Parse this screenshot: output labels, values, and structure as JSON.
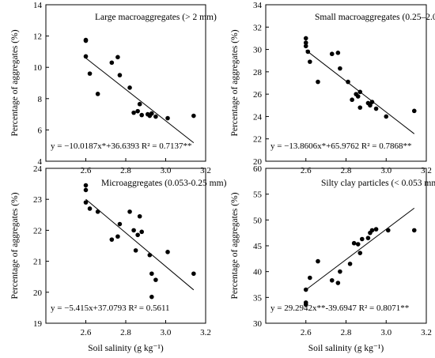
{
  "chart_data": [
    {
      "type": "scatter",
      "title": "Large macroaggregates (> 2 mm)",
      "ylabel": "Percentage of aggregates (%)",
      "xlabel": "",
      "xlim": [
        2.4,
        3.2
      ],
      "ylim": [
        4,
        14
      ],
      "xticks": [
        "2.6",
        "2.8",
        "3.0",
        "3.2"
      ],
      "yticks": [
        "4",
        "6",
        "8",
        "10",
        "12",
        "14"
      ],
      "equation": "y = −10.0187x*+36.6393  R² = 0.7137**",
      "fit": {
        "slope": -10.0187,
        "intercept": 36.6393,
        "x_range": [
          2.6,
          3.14
        ]
      },
      "points": [
        {
          "x": 2.6,
          "y": 11.7
        },
        {
          "x": 2.6,
          "y": 11.75
        },
        {
          "x": 2.6,
          "y": 10.7
        },
        {
          "x": 2.62,
          "y": 9.6
        },
        {
          "x": 2.66,
          "y": 8.3
        },
        {
          "x": 2.73,
          "y": 10.3
        },
        {
          "x": 2.76,
          "y": 10.65
        },
        {
          "x": 2.77,
          "y": 9.5
        },
        {
          "x": 2.82,
          "y": 8.7
        },
        {
          "x": 2.84,
          "y": 7.1
        },
        {
          "x": 2.86,
          "y": 7.2
        },
        {
          "x": 2.87,
          "y": 7.65
        },
        {
          "x": 2.88,
          "y": 6.95
        },
        {
          "x": 2.91,
          "y": 7.0
        },
        {
          "x": 2.92,
          "y": 6.9
        },
        {
          "x": 2.93,
          "y": 7.05
        },
        {
          "x": 2.95,
          "y": 6.85
        },
        {
          "x": 3.01,
          "y": 6.75
        },
        {
          "x": 3.14,
          "y": 6.9
        }
      ]
    },
    {
      "type": "scatter",
      "title": "Small macroaggregates (0.25–2.0 mm)",
      "ylabel": "Percentage of aggregates (%)",
      "xlabel": "",
      "xlim": [
        2.4,
        3.2
      ],
      "ylim": [
        20,
        34
      ],
      "xticks": [
        "2.6",
        "2.8",
        "3.0",
        "3.2"
      ],
      "yticks": [
        "20",
        "22",
        "24",
        "26",
        "28",
        "30",
        "32",
        "34"
      ],
      "equation": "y = −13.8606x*+65.9762  R² = 0.7868**",
      "fit": {
        "slope": -13.8606,
        "intercept": 65.9762,
        "x_range": [
          2.6,
          3.14
        ]
      },
      "points": [
        {
          "x": 2.6,
          "y": 31.0
        },
        {
          "x": 2.6,
          "y": 30.6
        },
        {
          "x": 2.6,
          "y": 30.3
        },
        {
          "x": 2.61,
          "y": 29.8
        },
        {
          "x": 2.62,
          "y": 28.9
        },
        {
          "x": 2.66,
          "y": 27.1
        },
        {
          "x": 2.73,
          "y": 29.6
        },
        {
          "x": 2.76,
          "y": 29.7
        },
        {
          "x": 2.77,
          "y": 28.3
        },
        {
          "x": 2.81,
          "y": 27.1
        },
        {
          "x": 2.83,
          "y": 25.5
        },
        {
          "x": 2.85,
          "y": 26.0
        },
        {
          "x": 2.86,
          "y": 25.8
        },
        {
          "x": 2.87,
          "y": 26.2
        },
        {
          "x": 2.87,
          "y": 24.8
        },
        {
          "x": 2.91,
          "y": 25.2
        },
        {
          "x": 2.92,
          "y": 25.0
        },
        {
          "x": 2.93,
          "y": 25.3
        },
        {
          "x": 2.95,
          "y": 24.7
        },
        {
          "x": 3.0,
          "y": 24.0
        },
        {
          "x": 3.14,
          "y": 24.5
        }
      ]
    },
    {
      "type": "scatter",
      "title": "Microaggregates (0.053-0.25 mm)",
      "ylabel": "Percentage of aggregates (%)",
      "xlabel": "Soil salinity (g kg⁻¹)",
      "xlim": [
        2.4,
        3.2
      ],
      "ylim": [
        19,
        24
      ],
      "xticks": [
        "2.6",
        "2.8",
        "3.0",
        "3.2"
      ],
      "yticks": [
        "19",
        "20",
        "21",
        "22",
        "23",
        "24"
      ],
      "equation": "y = −5.415x+37.0793  R² = 0.5611",
      "fit": {
        "slope": -5.415,
        "intercept": 37.0793,
        "x_range": [
          2.6,
          3.14
        ]
      },
      "points": [
        {
          "x": 2.6,
          "y": 23.45
        },
        {
          "x": 2.6,
          "y": 23.3
        },
        {
          "x": 2.6,
          "y": 22.9
        },
        {
          "x": 2.62,
          "y": 22.7
        },
        {
          "x": 2.66,
          "y": 22.6
        },
        {
          "x": 2.73,
          "y": 21.7
        },
        {
          "x": 2.76,
          "y": 21.8
        },
        {
          "x": 2.77,
          "y": 22.2
        },
        {
          "x": 2.82,
          "y": 22.6
        },
        {
          "x": 2.84,
          "y": 22.0
        },
        {
          "x": 2.85,
          "y": 21.35
        },
        {
          "x": 2.86,
          "y": 21.85
        },
        {
          "x": 2.87,
          "y": 22.45
        },
        {
          "x": 2.88,
          "y": 21.95
        },
        {
          "x": 2.92,
          "y": 21.2
        },
        {
          "x": 2.93,
          "y": 20.6
        },
        {
          "x": 2.93,
          "y": 19.85
        },
        {
          "x": 2.95,
          "y": 20.4
        },
        {
          "x": 3.01,
          "y": 21.3
        },
        {
          "x": 3.14,
          "y": 20.6
        }
      ]
    },
    {
      "type": "scatter",
      "title": "Silty clay particles (< 0.053 mm)",
      "ylabel": "Percentage of aggregates (%)",
      "xlabel": "Soil salinity (g kg⁻¹)",
      "xlim": [
        2.4,
        3.2
      ],
      "ylim": [
        30,
        60
      ],
      "xticks": [
        "2.6",
        "2.8",
        "3.0",
        "3.2"
      ],
      "yticks": [
        "30",
        "35",
        "40",
        "45",
        "50",
        "55",
        "60"
      ],
      "equation": "y = 29.2942x**-39.6947  R² = 0.8071**",
      "fit": {
        "slope": 29.2942,
        "intercept": -39.6947,
        "x_range": [
          2.6,
          3.14
        ]
      },
      "points": [
        {
          "x": 2.6,
          "y": 34.0
        },
        {
          "x": 2.6,
          "y": 33.6
        },
        {
          "x": 2.6,
          "y": 36.5
        },
        {
          "x": 2.62,
          "y": 38.8
        },
        {
          "x": 2.66,
          "y": 42.0
        },
        {
          "x": 2.73,
          "y": 38.3
        },
        {
          "x": 2.76,
          "y": 37.8
        },
        {
          "x": 2.77,
          "y": 40.0
        },
        {
          "x": 2.82,
          "y": 41.5
        },
        {
          "x": 2.84,
          "y": 45.5
        },
        {
          "x": 2.86,
          "y": 45.3
        },
        {
          "x": 2.87,
          "y": 43.6
        },
        {
          "x": 2.88,
          "y": 46.3
        },
        {
          "x": 2.91,
          "y": 46.5
        },
        {
          "x": 2.92,
          "y": 47.5
        },
        {
          "x": 2.93,
          "y": 48.0
        },
        {
          "x": 2.95,
          "y": 48.2
        },
        {
          "x": 3.01,
          "y": 48.0
        },
        {
          "x": 3.14,
          "y": 48.0
        }
      ]
    }
  ]
}
